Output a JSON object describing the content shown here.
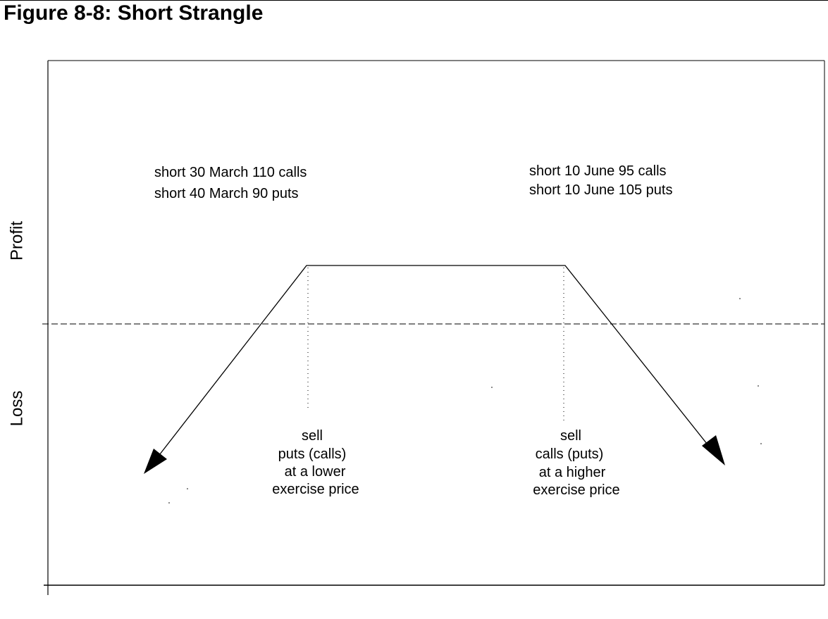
{
  "figure": {
    "title": "Figure 8-8: Short Strangle"
  },
  "axes": {
    "y_upper_label": "Profit",
    "y_lower_label": "Loss"
  },
  "examples": {
    "left": [
      "short 30 March 110 calls",
      "short 40 March 90 puts"
    ],
    "right": [
      "short 10 June 95 calls",
      "short 10 June 105 puts"
    ]
  },
  "annotations": {
    "left": [
      "sell",
      "puts (calls)",
      "at a lower",
      "exercise price"
    ],
    "right": [
      "sell",
      "calls (puts)",
      "at a higher",
      "exercise price"
    ]
  },
  "colors": {
    "line": "#000000",
    "background": "#ffffff"
  }
}
